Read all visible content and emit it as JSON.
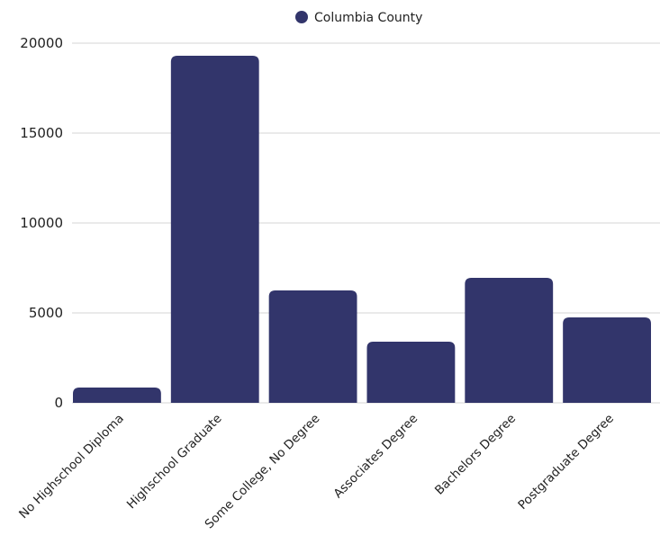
{
  "chart_data": {
    "type": "bar",
    "title": "",
    "xlabel": "",
    "ylabel": "",
    "categories": [
      "No Highschool Diploma",
      "Highschool Graduate",
      "Some College, No Degree",
      "Associates Degree",
      "Bachelors Degree",
      "Postgraduate Degree"
    ],
    "series": [
      {
        "name": "Columbia County",
        "color": "#32356b",
        "values": [
          850,
          19300,
          6250,
          3400,
          6950,
          4750
        ]
      }
    ],
    "ylim": [
      0,
      20000
    ],
    "yticks": [
      0,
      5000,
      10000,
      15000,
      20000
    ],
    "grid": true,
    "legend": "top-center"
  }
}
